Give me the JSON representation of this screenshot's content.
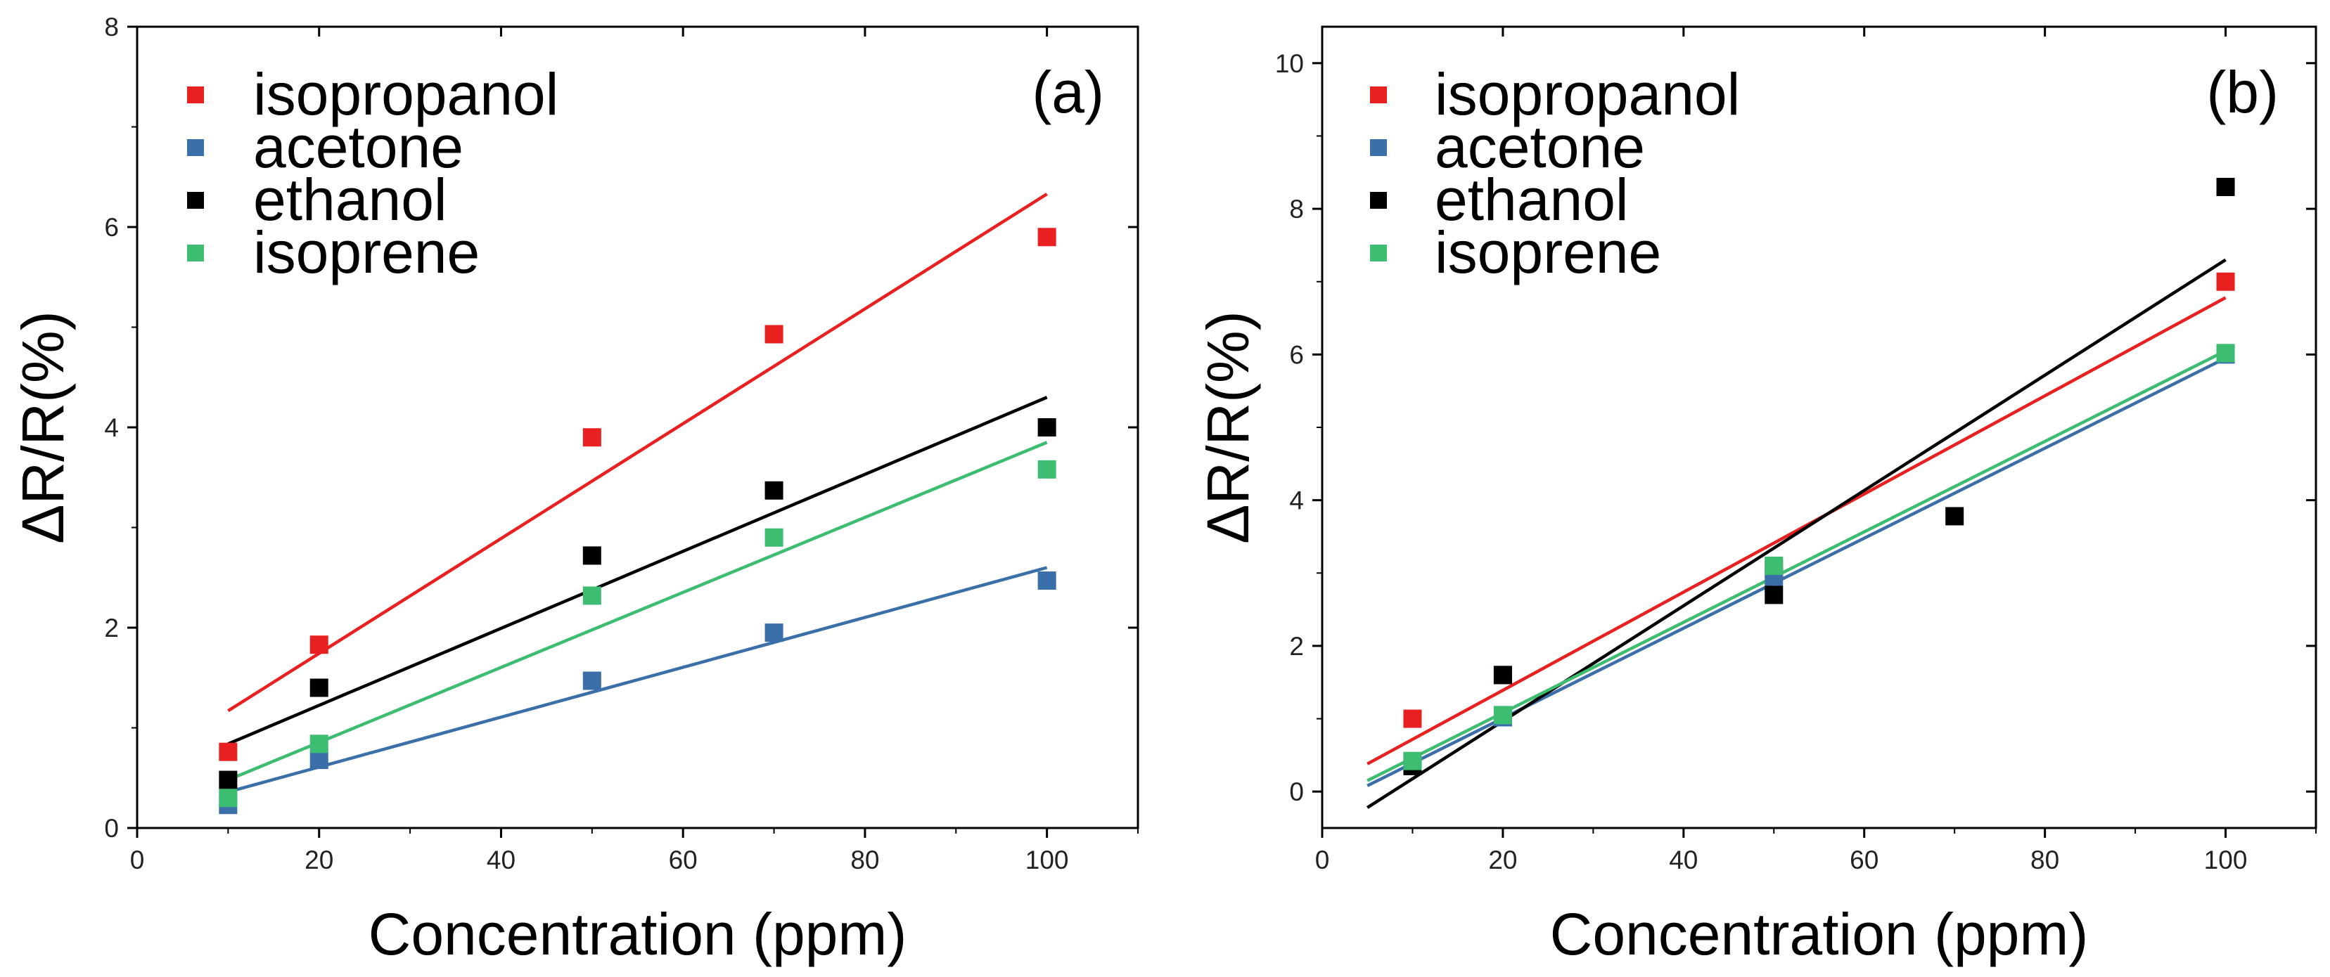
{
  "chart_data": [
    {
      "type": "scatter",
      "panel_label": "(a)",
      "xlabel": "Concentration (ppm)",
      "ylabel": "ΔR/R(%)",
      "xlim": [
        0,
        110
      ],
      "ylim": [
        0,
        8
      ],
      "xticks": [
        0,
        20,
        40,
        60,
        80,
        100
      ],
      "yticks": [
        0,
        2,
        4,
        6,
        8
      ],
      "xtick_labels": [
        "0",
        "20",
        "40",
        "60",
        "80",
        "100"
      ],
      "ytick_labels": [
        "0",
        "2",
        "4",
        "6",
        "8"
      ],
      "legend_position": "top-left",
      "series": [
        {
          "name": "isopropanol",
          "color": "#e8201f",
          "x": [
            10,
            20,
            50,
            70,
            100
          ],
          "y": [
            0.76,
            1.83,
            3.9,
            4.93,
            5.9
          ],
          "fit": [
            [
              10,
              1.17
            ],
            [
              100,
              6.33
            ]
          ]
        },
        {
          "name": "acetone",
          "color": "#3a6faa",
          "x": [
            10,
            20,
            50,
            70,
            100
          ],
          "y": [
            0.23,
            0.68,
            1.47,
            1.95,
            2.47
          ],
          "fit": [
            [
              10,
              0.36
            ],
            [
              100,
              2.6
            ]
          ]
        },
        {
          "name": "ethanol",
          "color": "#000000",
          "x": [
            10,
            20,
            50,
            70,
            100
          ],
          "y": [
            0.48,
            1.4,
            2.72,
            3.37,
            4.0
          ],
          "fit": [
            [
              10,
              0.84
            ],
            [
              100,
              4.3
            ]
          ]
        },
        {
          "name": "isoprene",
          "color": "#3dbd72",
          "x": [
            10,
            20,
            50,
            70,
            100
          ],
          "y": [
            0.3,
            0.84,
            2.32,
            2.9,
            3.58
          ],
          "fit": [
            [
              10,
              0.48
            ],
            [
              100,
              3.85
            ]
          ]
        }
      ]
    },
    {
      "type": "scatter",
      "panel_label": "(b)",
      "xlabel": "Concentration (ppm)",
      "ylabel": "ΔR/R(%)",
      "xlim": [
        0,
        110
      ],
      "ylim": [
        -0.5,
        10.5
      ],
      "xticks": [
        0,
        20,
        40,
        60,
        80,
        100
      ],
      "yticks": [
        0,
        2,
        4,
        6,
        8,
        10
      ],
      "xtick_labels": [
        "0",
        "20",
        "40",
        "60",
        "80",
        "100"
      ],
      "ytick_labels": [
        "0",
        "2",
        "4",
        "6",
        "8",
        "10"
      ],
      "legend_position": "top-left",
      "series": [
        {
          "name": "isopropanol",
          "color": "#e8201f",
          "x": [
            10,
            20,
            50,
            100
          ],
          "y": [
            1.0,
            1.6,
            3.05,
            7.0
          ],
          "fit": [
            [
              5,
              0.38
            ],
            [
              100,
              6.78
            ]
          ]
        },
        {
          "name": "acetone",
          "color": "#3a6faa",
          "x": [
            10,
            20,
            50,
            100
          ],
          "y": [
            0.4,
            1.02,
            2.95,
            6.0
          ],
          "fit": [
            [
              5,
              0.08
            ],
            [
              100,
              5.95
            ]
          ]
        },
        {
          "name": "ethanol",
          "color": "#000000",
          "x": [
            10,
            20,
            50,
            70,
            100
          ],
          "y": [
            0.35,
            1.6,
            2.7,
            3.78,
            8.3
          ],
          "fit": [
            [
              5,
              -0.22
            ],
            [
              100,
              7.3
            ]
          ]
        },
        {
          "name": "isoprene",
          "color": "#3dbd72",
          "x": [
            10,
            20,
            50,
            100
          ],
          "y": [
            0.42,
            1.05,
            3.1,
            6.02
          ],
          "fit": [
            [
              5,
              0.15
            ],
            [
              100,
              6.05
            ]
          ]
        }
      ]
    }
  ]
}
